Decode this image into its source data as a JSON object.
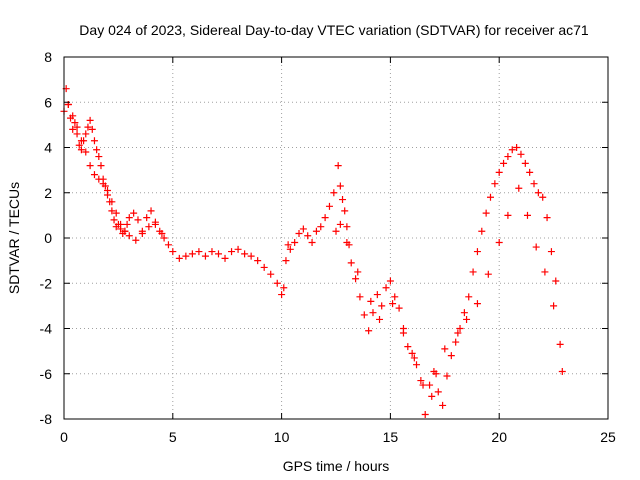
{
  "chart_data": {
    "type": "scatter",
    "title": "Day 024 of 2023, Sidereal Day-to-day VTEC variation (SDTVAR) for receiver ac71",
    "xlabel": "GPS time / hours",
    "ylabel": "SDTVAR / TECUs",
    "xlim": [
      0,
      25
    ],
    "ylim": [
      -8,
      8
    ],
    "xticks": [
      0,
      5,
      10,
      15,
      20,
      25
    ],
    "xtick_labels": [
      "0",
      "5",
      "10",
      "15",
      "20",
      "25"
    ],
    "yticks": [
      -8,
      -6,
      -4,
      -2,
      0,
      2,
      4,
      6,
      8
    ],
    "ytick_labels": [
      "-8",
      "-6",
      "-4",
      "-2",
      "0",
      "2",
      "4",
      "6",
      "8"
    ],
    "grid": true,
    "marker": "+",
    "color": "#ff0000",
    "series": [
      {
        "name": "SDTVAR",
        "x": [
          0.0,
          0.1,
          0.2,
          0.3,
          0.4,
          0.5,
          0.6,
          0.7,
          0.8,
          0.9,
          1.0,
          1.1,
          1.2,
          1.3,
          1.4,
          1.5,
          1.6,
          1.7,
          1.8,
          1.9,
          2.0,
          2.1,
          2.2,
          2.3,
          2.4,
          2.5,
          2.6,
          2.7,
          2.8,
          2.9,
          3.0,
          3.2,
          3.4,
          3.6,
          3.8,
          4.0,
          4.2,
          4.4,
          4.6,
          4.8,
          5.0,
          5.3,
          5.6,
          5.9,
          6.2,
          6.5,
          6.8,
          7.1,
          7.4,
          7.7,
          8.0,
          8.3,
          8.6,
          8.9,
          9.2,
          9.5,
          9.8,
          10.0,
          10.2,
          10.4,
          10.6,
          10.8,
          11.0,
          11.2,
          11.4,
          11.6,
          11.8,
          12.0,
          12.2,
          12.4,
          12.6,
          12.7,
          12.8,
          12.9,
          13.0,
          13.1,
          13.2,
          13.4,
          13.6,
          13.8,
          14.0,
          14.2,
          14.4,
          14.6,
          14.8,
          15.0,
          15.2,
          15.4,
          15.6,
          15.8,
          16.0,
          16.2,
          16.4,
          16.6,
          16.8,
          17.0,
          17.2,
          17.4,
          17.6,
          17.8,
          18.0,
          18.2,
          18.4,
          18.6,
          18.8,
          19.0,
          19.2,
          19.4,
          19.6,
          19.8,
          20.0,
          20.2,
          20.4,
          20.6,
          20.8,
          21.0,
          21.2,
          21.4,
          21.6,
          21.8,
          22.0,
          22.2,
          22.4,
          22.6,
          22.8,
          0.2,
          0.4,
          0.6,
          0.8,
          1.0,
          1.2,
          1.4,
          1.6,
          1.8,
          2.0,
          2.2,
          2.4,
          2.6,
          2.8,
          3.0,
          3.3,
          3.6,
          3.9,
          4.2,
          4.5,
          10.1,
          10.3,
          12.5,
          12.7,
          13.0,
          13.5,
          14.1,
          14.5,
          15.1,
          15.6,
          16.1,
          16.5,
          16.9,
          17.1,
          17.5,
          18.1,
          18.5,
          19.0,
          19.5,
          20.0,
          20.4,
          20.9,
          21.3,
          21.7,
          22.1,
          22.5,
          22.9
        ],
        "y": [
          5.6,
          6.6,
          5.9,
          5.3,
          4.8,
          5.1,
          4.6,
          4.1,
          3.9,
          4.3,
          4.6,
          4.9,
          5.2,
          4.8,
          4.3,
          3.9,
          3.6,
          3.2,
          2.6,
          2.3,
          1.9,
          1.6,
          1.2,
          0.8,
          0.5,
          0.6,
          0.4,
          0.2,
          0.3,
          0.6,
          0.9,
          1.1,
          0.8,
          0.3,
          0.9,
          1.2,
          0.7,
          0.3,
          0.0,
          -0.3,
          -0.6,
          -0.9,
          -0.8,
          -0.7,
          -0.6,
          -0.8,
          -0.6,
          -0.7,
          -0.9,
          -0.6,
          -0.5,
          -0.7,
          -0.8,
          -1.0,
          -1.3,
          -1.6,
          -2.0,
          -2.5,
          -1.0,
          -0.5,
          -0.2,
          0.2,
          0.4,
          0.1,
          -0.2,
          0.3,
          0.5,
          0.9,
          1.4,
          2.0,
          3.2,
          2.3,
          1.7,
          1.2,
          0.5,
          -0.3,
          -1.1,
          -1.8,
          -2.6,
          -3.4,
          -4.1,
          -3.3,
          -2.5,
          -3.0,
          -2.2,
          -1.9,
          -2.6,
          -3.1,
          -4.2,
          -4.8,
          -5.1,
          -5.6,
          -6.3,
          -7.8,
          -6.5,
          -5.9,
          -6.8,
          -7.4,
          -6.1,
          -5.2,
          -4.6,
          -4.0,
          -3.3,
          -2.6,
          -1.5,
          -0.6,
          0.3,
          1.1,
          1.8,
          2.4,
          2.9,
          3.3,
          3.6,
          3.9,
          4.0,
          3.7,
          3.3,
          2.9,
          2.4,
          2.0,
          1.8,
          0.9,
          -0.6,
          -1.9,
          -4.7,
          5.9,
          5.4,
          4.9,
          4.3,
          3.8,
          3.2,
          2.8,
          2.6,
          2.4,
          2.1,
          1.6,
          1.1,
          0.6,
          0.3,
          0.1,
          -0.1,
          0.2,
          0.5,
          0.6,
          0.2,
          -2.2,
          -0.3,
          0.3,
          0.6,
          -0.2,
          -1.5,
          -2.8,
          -3.6,
          -2.9,
          -4.0,
          -5.3,
          -6.5,
          -7.0,
          -6.0,
          -4.9,
          -4.2,
          -3.6,
          -2.9,
          -1.6,
          -0.2,
          1.0,
          2.2,
          1.0,
          -0.4,
          -1.5,
          -3.0,
          -5.9
        ]
      }
    ]
  }
}
